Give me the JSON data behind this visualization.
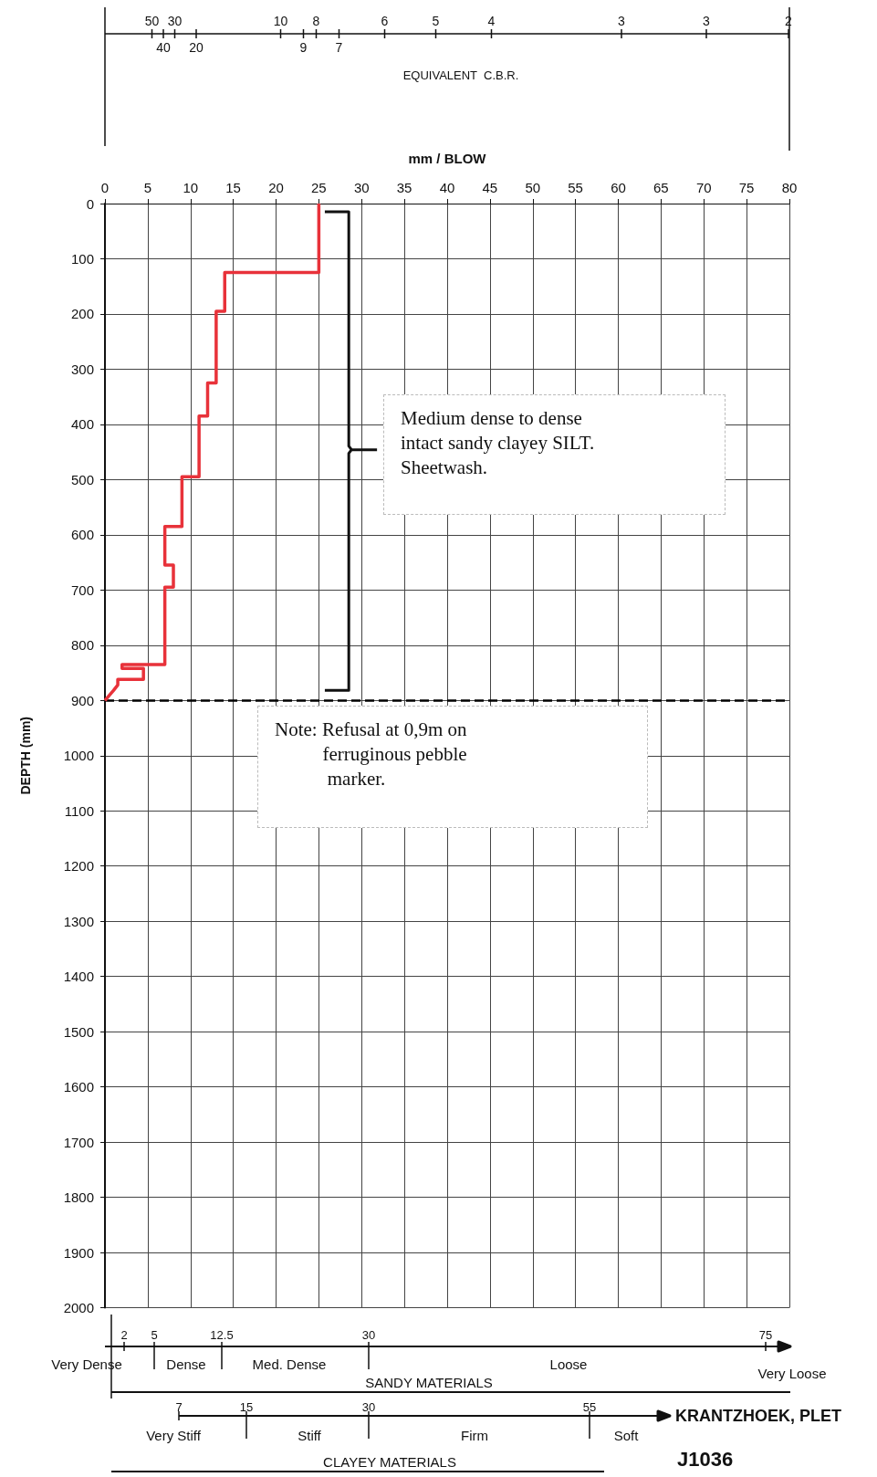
{
  "chart_data": [
    {
      "type": "line",
      "xlabel": "mm / BLOW",
      "ylabel": "DEPTH (mm)",
      "x": [
        25,
        25,
        14,
        14,
        13,
        13,
        12,
        12,
        11,
        11,
        9,
        9,
        7,
        7,
        8,
        8,
        7,
        7,
        2,
        2,
        4.5,
        4.5,
        1.5,
        1.5,
        1,
        0
      ],
      "values": [
        0,
        125,
        125,
        195,
        195,
        325,
        325,
        385,
        385,
        495,
        495,
        585,
        585,
        655,
        655,
        695,
        695,
        835,
        835,
        842,
        842,
        862,
        862,
        872,
        882,
        900
      ],
      "color": "#e8323a",
      "line_style": "solid",
      "marker": "none",
      "xlim": [
        0,
        80
      ],
      "xticks": [
        0,
        5,
        10,
        15,
        20,
        25,
        30,
        35,
        40,
        45,
        50,
        55,
        60,
        65,
        70,
        75,
        80
      ],
      "ylim": [
        2000,
        0
      ],
      "yticks": [
        0,
        100,
        200,
        300,
        400,
        500,
        600,
        700,
        800,
        900,
        1000,
        1100,
        1200,
        1300,
        1400,
        1500,
        1600,
        1700,
        1800,
        1900,
        2000
      ],
      "grid": true,
      "ref_lines": [
        {
          "axis": "y",
          "value": 900,
          "color": "#000000",
          "line_style": "dashed"
        }
      ],
      "annotations": [
        "EQUIVALENT  C.B.R.",
        "Medium dense to dense\nintact sandy clayey SILT.\nSheetwash.",
        "Note: Refusal at 0,9m on\n          ferruginous pebble\n           marker.",
        "50",
        "40",
        "30",
        "20",
        "10",
        "9",
        "8",
        "7",
        "6",
        "5",
        "4",
        "3",
        "3",
        "2"
      ]
    },
    {
      "type": "other",
      "xlabel": "SANDY MATERIALS",
      "annotations": [
        "2",
        "5",
        "12.5",
        "30",
        "75",
        "Very Dense",
        "Dense",
        "Med. Dense",
        "Loose",
        "Very Loose"
      ]
    },
    {
      "type": "other",
      "xlabel": "CLAYEY MATERIALS",
      "annotations": [
        "7",
        "15",
        "30",
        "55",
        "Very Stiff",
        "Stiff",
        "Firm",
        "Soft",
        "KRANTZHOEK, PLET",
        "J1036"
      ]
    }
  ]
}
